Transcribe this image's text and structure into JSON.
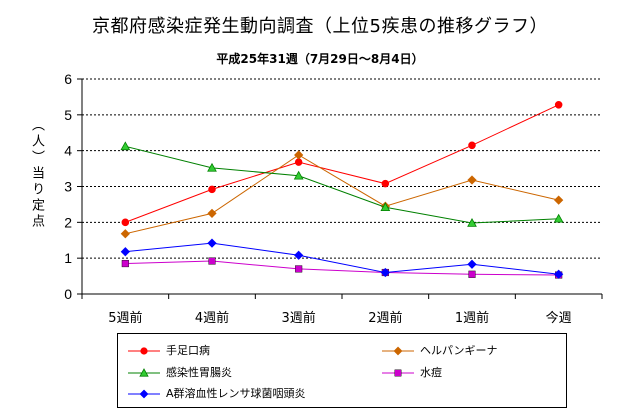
{
  "chart_data": {
    "type": "line",
    "title": "京都府感染症発生動向調査（上位5疾患の推移グラフ）",
    "subtitle": "平成25年31週（7月29日～8月4日）",
    "ylabel": "（人）当り定点",
    "xlabel": "",
    "categories": [
      "5週前",
      "4週前",
      "3週前",
      "2週前",
      "1週前",
      "今週"
    ],
    "ylim": [
      0,
      6
    ],
    "yticks": [
      0,
      1,
      2,
      3,
      4,
      5,
      6
    ],
    "grid": "horizontal-dotted",
    "legend_position": "bottom",
    "series": [
      {
        "name": "手足口病",
        "color": "#ff0000",
        "marker": "circle",
        "values": [
          2.0,
          2.92,
          3.68,
          3.08,
          4.15,
          5.28
        ]
      },
      {
        "name": "ヘルパンギーナ",
        "color": "#cc6600",
        "marker": "diamond",
        "values": [
          1.68,
          2.25,
          3.88,
          2.45,
          3.18,
          2.62
        ]
      },
      {
        "name": "感染性胃腸炎",
        "color": "#008000",
        "marker": "triangle",
        "values": [
          4.12,
          3.52,
          3.3,
          2.42,
          1.98,
          2.1
        ]
      },
      {
        "name": "水痘",
        "color": "#cc00cc",
        "marker": "square",
        "values": [
          0.85,
          0.92,
          0.7,
          0.6,
          0.55,
          0.53
        ]
      },
      {
        "name": "A群溶血性レンサ球菌咽頭炎",
        "color": "#0000ff",
        "marker": "diamond",
        "values": [
          1.18,
          1.42,
          1.08,
          0.6,
          0.83,
          0.55
        ]
      }
    ]
  }
}
